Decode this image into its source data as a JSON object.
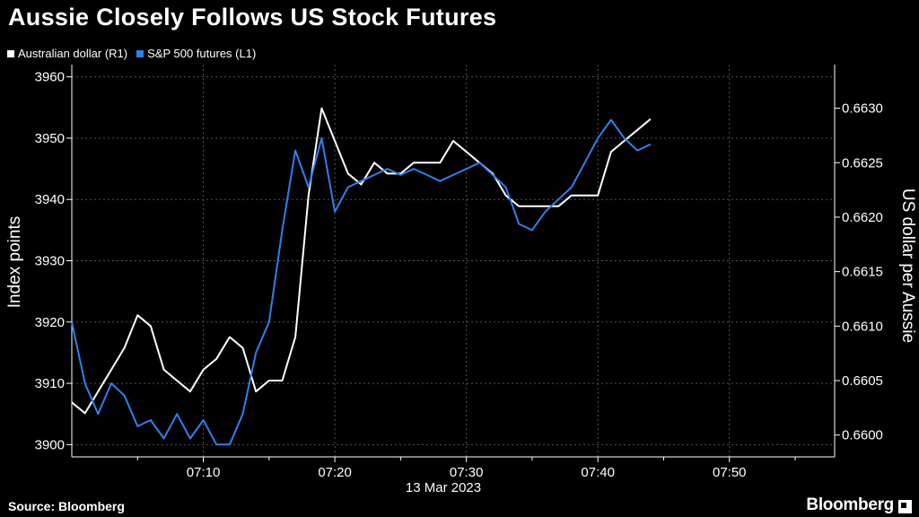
{
  "title": "Aussie Closely Follows US Stock Futures",
  "source": "Source: Bloomberg",
  "brand": "Bloomberg",
  "colors": {
    "aud": "#ffffff",
    "spx": "#2f80ed",
    "grid": "#555555",
    "background": "#000000"
  },
  "chart_data": {
    "type": "line",
    "xlabel": "13 Mar 2023",
    "ylabel_left": "Index points",
    "ylabel_right": "US dollar per Aussie",
    "x_ticks": [
      "07:10",
      "07:20",
      "07:30",
      "07:40",
      "07:50"
    ],
    "y_left_ticks": [
      "3900",
      "3910",
      "3920",
      "3930",
      "3940",
      "3950",
      "3960"
    ],
    "y_right_ticks": [
      "0.6600",
      "0.6605",
      "0.6610",
      "0.6615",
      "0.6620",
      "0.6625",
      "0.6630"
    ],
    "xlim": [
      "07:00",
      "07:58"
    ],
    "ylim_left": [
      3898,
      3962
    ],
    "ylim_right": [
      0.6598,
      0.6634
    ],
    "grid": true,
    "legend_position": "top-left",
    "series": [
      {
        "name": "Australian dollar (R1)",
        "axis": "right",
        "x": [
          "07:00",
          "07:01",
          "07:02",
          "07:03",
          "07:04",
          "07:05",
          "07:06",
          "07:07",
          "07:08",
          "07:09",
          "07:10",
          "07:11",
          "07:12",
          "07:13",
          "07:14",
          "07:15",
          "07:16",
          "07:17",
          "07:18",
          "07:19",
          "07:20",
          "07:21",
          "07:22",
          "07:23",
          "07:24",
          "07:25",
          "07:26",
          "07:27",
          "07:28",
          "07:29",
          "07:30",
          "07:31",
          "07:32",
          "07:33",
          "07:34",
          "07:35",
          "07:36",
          "07:37",
          "07:38",
          "07:39",
          "07:40",
          "07:41",
          "07:42",
          "07:43",
          "07:44"
        ],
        "values": [
          0.6603,
          0.6602,
          0.6604,
          0.6606,
          0.6608,
          0.6611,
          0.661,
          0.6606,
          0.6605,
          0.6604,
          0.6606,
          0.6607,
          0.6609,
          0.6608,
          0.6604,
          0.6605,
          0.6605,
          0.6609,
          0.6622,
          0.663,
          0.6627,
          0.6624,
          0.6623,
          0.6625,
          0.6624,
          0.6624,
          0.6625,
          0.6625,
          0.6625,
          0.6627,
          0.6626,
          0.6625,
          0.6624,
          0.6622,
          0.6621,
          0.6621,
          0.6621,
          0.6621,
          0.6622,
          0.6622,
          0.6622,
          0.6626,
          0.6627,
          0.6628,
          0.6629
        ]
      },
      {
        "name": "S&P 500 futures (L1)",
        "axis": "left",
        "x": [
          "07:00",
          "07:01",
          "07:02",
          "07:03",
          "07:04",
          "07:05",
          "07:06",
          "07:07",
          "07:08",
          "07:09",
          "07:10",
          "07:11",
          "07:12",
          "07:13",
          "07:14",
          "07:15",
          "07:16",
          "07:17",
          "07:18",
          "07:19",
          "07:20",
          "07:21",
          "07:22",
          "07:23",
          "07:24",
          "07:25",
          "07:26",
          "07:27",
          "07:28",
          "07:29",
          "07:30",
          "07:31",
          "07:32",
          "07:33",
          "07:34",
          "07:35",
          "07:36",
          "07:37",
          "07:38",
          "07:39",
          "07:40",
          "07:41",
          "07:42",
          "07:43",
          "07:44"
        ],
        "values": [
          3920,
          3910,
          3905,
          3910,
          3908,
          3903,
          3904,
          3901,
          3905,
          3901,
          3904,
          3900,
          3900,
          3905,
          3915,
          3920,
          3935,
          3948,
          3942,
          3950,
          3938,
          3942,
          3943,
          3944,
          3945,
          3944,
          3945,
          3944,
          3943,
          3944,
          3945,
          3946,
          3944,
          3942,
          3936,
          3935,
          3938,
          3940,
          3942,
          3946,
          3950,
          3953,
          3950,
          3948,
          3949
        ]
      }
    ]
  }
}
